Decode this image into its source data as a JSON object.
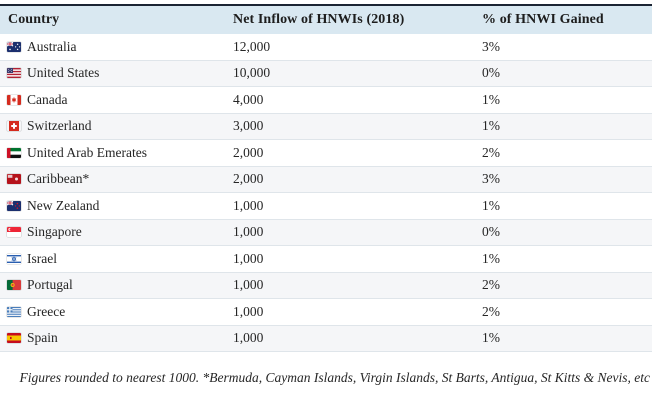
{
  "chart_data": {
    "type": "table",
    "columns": [
      "Country",
      "Net Inflow of HNWIs (2018)",
      "% of HNWI Gained"
    ],
    "rows": [
      {
        "country": "Australia",
        "flag": "australia",
        "inflow": "12,000",
        "pct": "3%"
      },
      {
        "country": "United States",
        "flag": "united-states",
        "inflow": "10,000",
        "pct": "0%"
      },
      {
        "country": "Canada",
        "flag": "canada",
        "inflow": "4,000",
        "pct": "1%"
      },
      {
        "country": "Switzerland",
        "flag": "switzerland",
        "inflow": "3,000",
        "pct": "1%"
      },
      {
        "country": "United Arab Emerates",
        "flag": "uae",
        "inflow": "2,000",
        "pct": "2%"
      },
      {
        "country": "Caribbean*",
        "flag": "caribbean",
        "inflow": "2,000",
        "pct": "3%"
      },
      {
        "country": "New Zealand",
        "flag": "new-zealand",
        "inflow": "1,000",
        "pct": "1%"
      },
      {
        "country": "Singapore",
        "flag": "singapore",
        "inflow": "1,000",
        "pct": "0%"
      },
      {
        "country": "Israel",
        "flag": "israel",
        "inflow": "1,000",
        "pct": "1%"
      },
      {
        "country": "Portugal",
        "flag": "portugal",
        "inflow": "1,000",
        "pct": "2%"
      },
      {
        "country": "Greece",
        "flag": "greece",
        "inflow": "1,000",
        "pct": "2%"
      },
      {
        "country": "Spain",
        "flag": "spain",
        "inflow": "1,000",
        "pct": "1%"
      }
    ],
    "footnote": "Figures rounded to nearest 1000. *Bermuda, Cayman Islands, Virgin Islands, St Barts, Antigua, St Kitts & Nevis, etc"
  },
  "table": {
    "columns": [
      "Country",
      "Net Inflow of HNWIs (2018)",
      "% of HNWI Gained"
    ]
  },
  "footnote": {
    "text": "Figures rounded to nearest 1000. *Bermuda, Cayman Islands, Virgin Islands, St Barts, Antigua, St Kitts & Nevis, etc"
  },
  "colors": {
    "header_bg": "#d9e8f1",
    "header_top_border": "#1b2433",
    "row_alt_bg": "#f5f6f8",
    "row_separator": "#dfe5ea",
    "text": "#262626"
  }
}
